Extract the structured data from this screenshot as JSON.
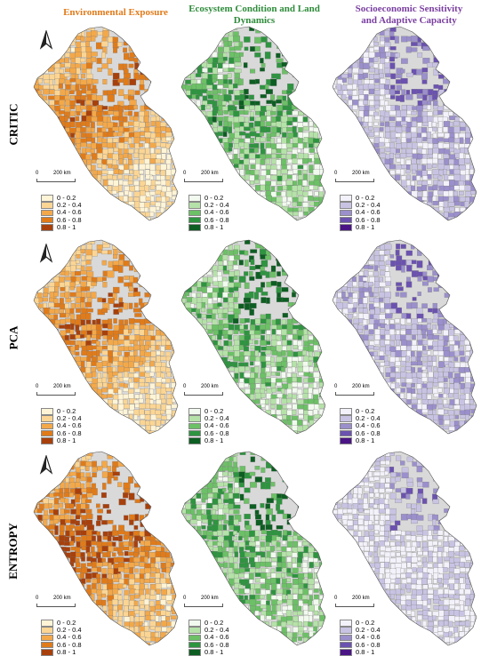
{
  "columns": [
    {
      "title_line1": "Environmental Exposure",
      "title_line2": "",
      "color": "#e07b1a"
    },
    {
      "title_line1": "Ecosystem Condition and Land",
      "title_line2": "Dynamics",
      "color": "#2e8b3a"
    },
    {
      "title_line1": "Socioeconomic Sensitivity",
      "title_line2": "and Adaptive Capacity",
      "color": "#7a3fa0"
    }
  ],
  "rows": [
    {
      "label": "CRITIC"
    },
    {
      "label": "PCA"
    },
    {
      "label": "ENTROPY"
    }
  ],
  "legend_labels": [
    "0 - 0.2",
    "0.2 - 0.4",
    "0.4 - 0.6",
    "0.6 - 0.8",
    "0.8 - 1"
  ],
  "palettes": {
    "orange": [
      "#fff4d6",
      "#fbd594",
      "#f3a84a",
      "#e07b1a",
      "#a8400c"
    ],
    "green": [
      "#f2faef",
      "#b5e2a8",
      "#6cc066",
      "#2e9440",
      "#0d5e22"
    ],
    "purple": [
      "#f3f1f9",
      "#c9c3e3",
      "#9b8fcc",
      "#6b52b0",
      "#4a1486"
    ]
  },
  "no_data_color": "#d9d9d9",
  "scale_bar": {
    "start": "0",
    "end": "200 km"
  },
  "north_arrow": "north-arrow-icon"
}
